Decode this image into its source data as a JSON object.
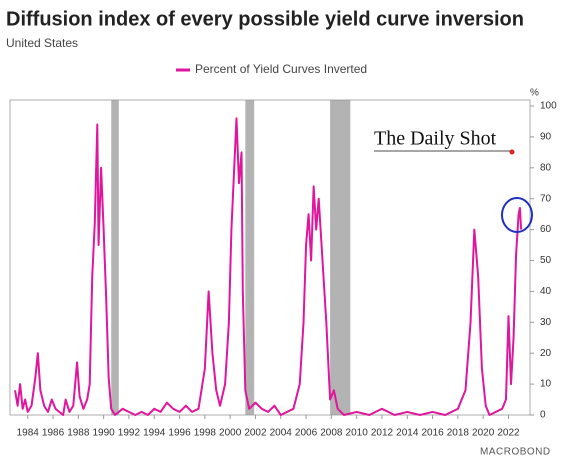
{
  "chart_data": {
    "type": "line",
    "title": "Diffusion index of every possible yield curve inversion",
    "subtitle": "United States",
    "y_unit_label": "%",
    "logo": "The Daily Shot",
    "source": "MACROBOND",
    "xlim": [
      1982.6,
      2023.7
    ],
    "xticks": [
      1984,
      1986,
      1988,
      1990,
      1992,
      1994,
      1996,
      1998,
      2000,
      2002,
      2004,
      2006,
      2008,
      2010,
      2012,
      2014,
      2016,
      2018,
      2020,
      2022
    ],
    "ylim": [
      0,
      100
    ],
    "yticks": [
      0,
      10,
      20,
      30,
      40,
      50,
      60,
      70,
      80,
      90,
      100
    ],
    "shaded_periods": [
      [
        1990.6,
        1991.2
      ],
      [
        2001.2,
        2001.9
      ],
      [
        2007.9,
        2009.5
      ]
    ],
    "shade_color": "#b3b3b3",
    "x": [
      1983.0,
      1983.2,
      1983.4,
      1983.6,
      1983.8,
      1984.0,
      1984.3,
      1984.6,
      1984.8,
      1985.0,
      1985.3,
      1985.6,
      1985.9,
      1986.2,
      1986.5,
      1986.8,
      1987.0,
      1987.3,
      1987.6,
      1987.9,
      1988.1,
      1988.4,
      1988.7,
      1988.9,
      1989.1,
      1989.3,
      1989.5,
      1989.6,
      1989.8,
      1990.0,
      1990.2,
      1990.4,
      1990.6,
      1990.9,
      1991.5,
      1992.0,
      1992.5,
      1993.0,
      1993.5,
      1994.0,
      1994.5,
      1995.0,
      1995.5,
      1996.0,
      1996.5,
      1997.0,
      1997.5,
      1998.0,
      1998.3,
      1998.6,
      1998.9,
      1999.2,
      1999.6,
      1999.9,
      2000.1,
      2000.3,
      2000.5,
      2000.7,
      2000.9,
      2001.0,
      2001.2,
      2001.5,
      2002.0,
      2002.5,
      2003.0,
      2003.5,
      2004.0,
      2005.0,
      2005.5,
      2005.8,
      2006.0,
      2006.2,
      2006.4,
      2006.6,
      2006.8,
      2007.0,
      2007.3,
      2007.6,
      2007.9,
      2008.2,
      2008.5,
      2009.0,
      2010.0,
      2011.0,
      2012.0,
      2013.0,
      2014.0,
      2015.0,
      2016.0,
      2017.0,
      2018.0,
      2018.6,
      2019.0,
      2019.3,
      2019.6,
      2019.9,
      2020.2,
      2020.5,
      2021.0,
      2021.5,
      2021.8,
      2022.0,
      2022.2,
      2022.4,
      2022.6,
      2022.8,
      2022.9,
      2023.0
    ],
    "series": [
      {
        "name": "Percent of Yield Curves Inverted",
        "color": "#e0169c",
        "values": [
          8,
          3,
          10,
          2,
          5,
          1,
          3,
          12,
          20,
          8,
          3,
          1,
          5,
          2,
          1,
          0,
          5,
          1,
          3,
          17,
          6,
          2,
          5,
          10,
          45,
          62,
          94,
          55,
          80,
          60,
          38,
          12,
          2,
          0,
          2,
          1,
          0,
          1,
          0,
          2,
          1,
          4,
          2,
          1,
          3,
          1,
          2,
          15,
          40,
          20,
          8,
          3,
          10,
          30,
          60,
          78,
          96,
          75,
          85,
          40,
          8,
          2,
          4,
          2,
          1,
          3,
          0,
          2,
          10,
          30,
          55,
          65,
          50,
          74,
          60,
          70,
          50,
          30,
          5,
          8,
          2,
          0,
          1,
          0,
          2,
          0,
          1,
          0,
          1,
          0,
          2,
          8,
          30,
          60,
          45,
          15,
          3,
          0,
          1,
          2,
          5,
          32,
          10,
          25,
          52,
          65,
          67,
          60
        ]
      }
    ]
  }
}
